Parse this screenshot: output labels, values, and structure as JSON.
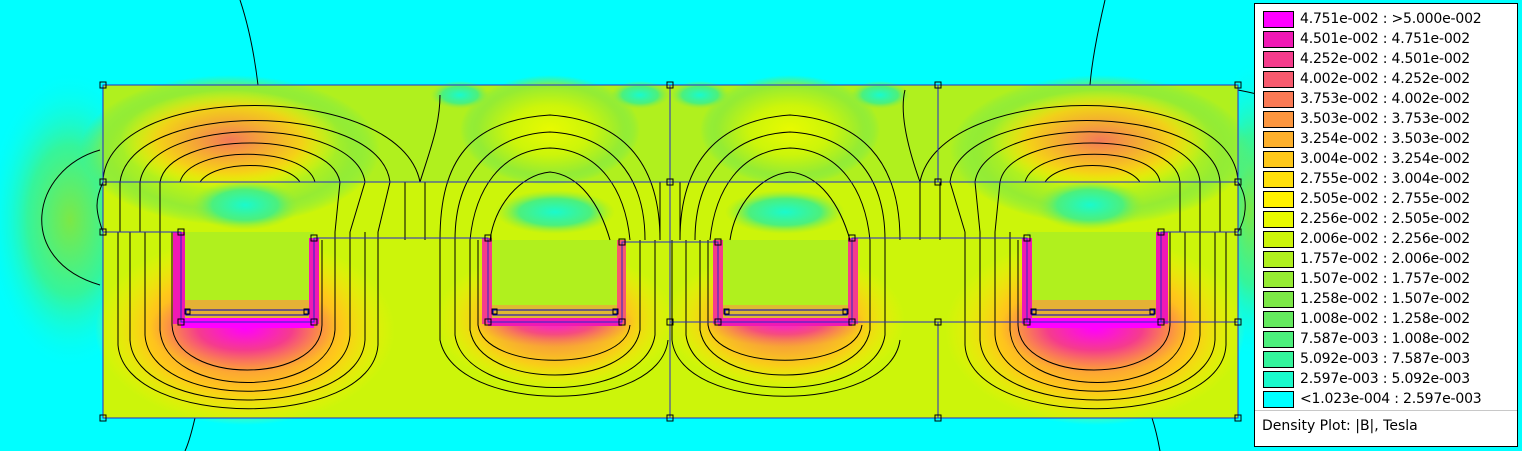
{
  "legend": {
    "title": "Density Plot: |B|, Tesla",
    "entries": [
      {
        "label": "4.751e-002 : >5.000e-002",
        "color": "#ff00ff"
      },
      {
        "label": "4.501e-002 : 4.751e-002",
        "color": "#f019b4"
      },
      {
        "label": "4.252e-002 : 4.501e-002",
        "color": "#f53c8c"
      },
      {
        "label": "4.002e-002 : 4.252e-002",
        "color": "#f75a6e"
      },
      {
        "label": "3.753e-002 : 4.002e-002",
        "color": "#fa7a55"
      },
      {
        "label": "3.503e-002 : 3.753e-002",
        "color": "#fc963f"
      },
      {
        "label": "3.254e-002 : 3.503e-002",
        "color": "#fdb02c"
      },
      {
        "label": "3.004e-002 : 3.254e-002",
        "color": "#fec81a"
      },
      {
        "label": "2.755e-002 : 3.004e-002",
        "color": "#ffe00b"
      },
      {
        "label": "2.505e-002 : 2.755e-002",
        "color": "#fff200"
      },
      {
        "label": "2.256e-002 : 2.505e-002",
        "color": "#e8fa00"
      },
      {
        "label": "2.006e-002 : 2.256e-002",
        "color": "#ccf50a"
      },
      {
        "label": "1.757e-002 : 2.006e-002",
        "color": "#b0f01e"
      },
      {
        "label": "1.507e-002 : 1.757e-002",
        "color": "#96ec32"
      },
      {
        "label": "1.258e-002 : 1.507e-002",
        "color": "#7ce846"
      },
      {
        "label": "1.008e-002 : 1.258e-002",
        "color": "#64ea5e"
      },
      {
        "label": "7.587e-003 : 1.008e-002",
        "color": "#4cf07c"
      },
      {
        "label": "5.092e-003 : 7.587e-003",
        "color": "#34f59c"
      },
      {
        "label": "2.597e-003 : 5.092e-003",
        "color": "#1afacc"
      },
      {
        "label": "<1.023e-004 : 2.597e-003",
        "color": "#00ffff"
      }
    ]
  }
}
